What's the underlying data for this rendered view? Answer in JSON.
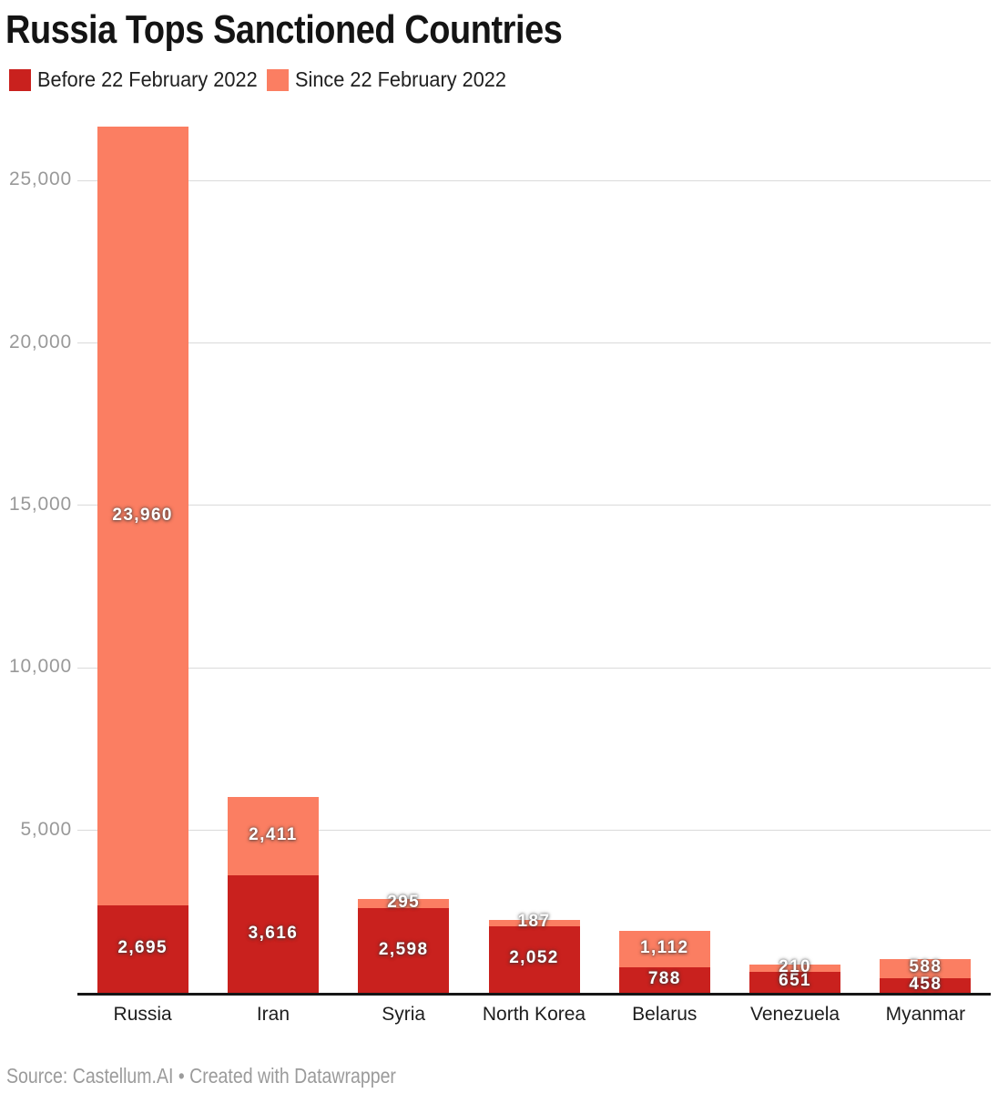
{
  "header": {
    "title": "Russia Tops Sanctioned Countries"
  },
  "legend": {
    "items": [
      {
        "label": "Before 22 February 2022",
        "color": "#c9211e"
      },
      {
        "label": "Since 22 February 2022",
        "color": "#fb7e62"
      }
    ]
  },
  "chart_data": {
    "type": "bar",
    "stacked": true,
    "title": "Russia Tops Sanctioned Countries",
    "categories": [
      "Russia",
      "Iran",
      "Syria",
      "North Korea",
      "Belarus",
      "Venezuela",
      "Myanmar"
    ],
    "series": [
      {
        "name": "Before 22 February 2022",
        "color": "#c9211e",
        "values": [
          2695,
          3616,
          2598,
          2052,
          788,
          651,
          458
        ],
        "labels": [
          "2,695",
          "3,616",
          "2,598",
          "2,052",
          "788",
          "651",
          "458"
        ]
      },
      {
        "name": "Since 22 February 2022",
        "color": "#fb7e62",
        "values": [
          23960,
          2411,
          295,
          187,
          1112,
          210,
          588
        ],
        "labels": [
          "23,960",
          "2,411",
          "295",
          "187",
          "1,112",
          "210",
          "588"
        ]
      }
    ],
    "xlabel": "",
    "ylabel": "",
    "ylim": [
      0,
      27200
    ],
    "y_ticks": [
      5000,
      10000,
      15000,
      20000,
      25000
    ],
    "y_tick_labels": [
      "5,000",
      "10,000",
      "15,000",
      "20,000",
      "25,000"
    ],
    "grid": "horizontal",
    "legend_position": "top",
    "value_label_color": "#ffffff",
    "gridline_color": "#dadada",
    "axis_line_color": "#161616",
    "tick_label_color": "#999999",
    "category_label_color": "#1d1d1d"
  },
  "footer": {
    "text": "Source: Castellum.AI • Created with Datawrapper"
  }
}
